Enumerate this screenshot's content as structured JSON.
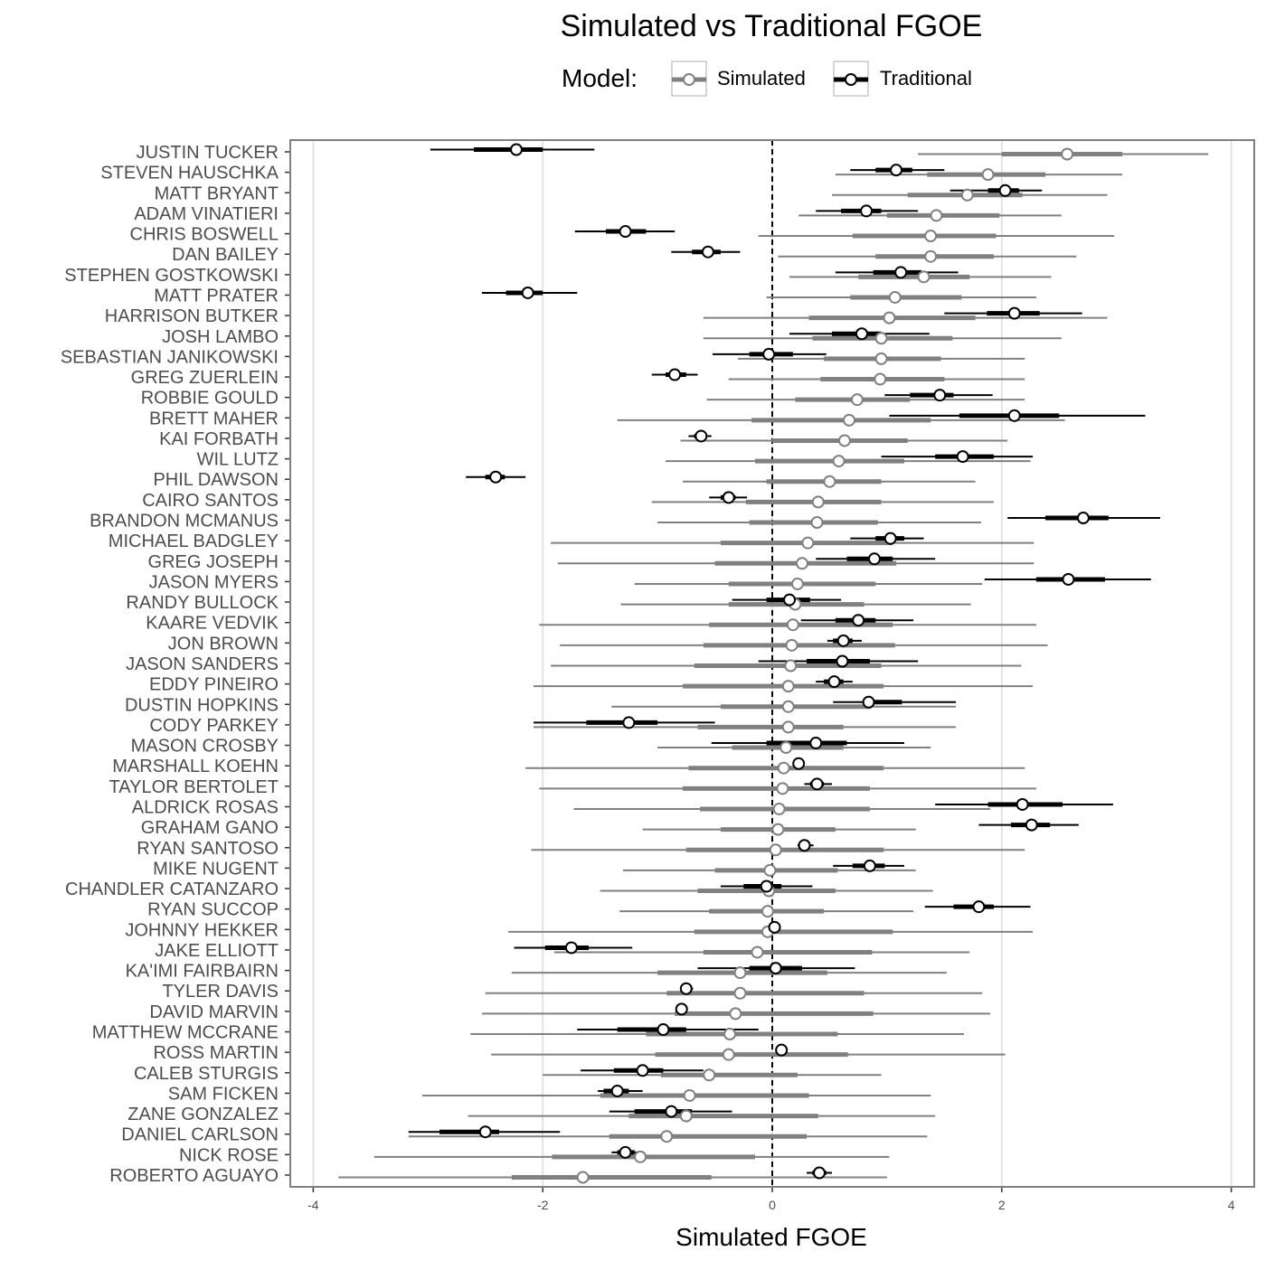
{
  "chart_data": {
    "type": "interval",
    "title": "Simulated vs Traditional FGOE",
    "xlabel": "Simulated FGOE",
    "ylabel": "",
    "xlim": [
      -4.2,
      4.2
    ],
    "xticks": [
      -4,
      -2,
      0,
      2,
      4
    ],
    "xtick_labels": [
      "-4",
      "-2",
      "0",
      "2",
      "4"
    ],
    "reference_line_x": 0,
    "grid": true,
    "legend": {
      "title": "Model:",
      "position": "top",
      "entries": [
        "Simulated",
        "Traditional"
      ]
    },
    "series": [
      {
        "name": "Simulated",
        "color": "#808080"
      },
      {
        "name": "Traditional",
        "color": "#000000"
      }
    ],
    "players": [
      {
        "name": "JUSTIN TUCKER",
        "sim": [
          1.27,
          2.0,
          2.57,
          3.05,
          3.8
        ],
        "trad": [
          -2.98,
          -2.6,
          -2.23,
          -2.0,
          -1.55
        ]
      },
      {
        "name": "STEVEN HAUSCHKA",
        "sim": [
          0.55,
          1.35,
          1.88,
          2.38,
          3.05
        ],
        "trad": [
          0.68,
          0.9,
          1.08,
          1.22,
          1.5
        ]
      },
      {
        "name": "MATT BRYANT",
        "sim": [
          0.52,
          1.18,
          1.7,
          2.18,
          2.92
        ],
        "trad": [
          1.55,
          1.88,
          2.03,
          2.15,
          2.35
        ]
      },
      {
        "name": "ADAM VINATIERI",
        "sim": [
          0.23,
          1.0,
          1.43,
          1.98,
          2.52
        ],
        "trad": [
          0.38,
          0.6,
          0.82,
          0.95,
          1.27
        ]
      },
      {
        "name": "CHRIS BOSWELL",
        "sim": [
          -0.12,
          0.7,
          1.38,
          1.95,
          2.98
        ],
        "trad": [
          -1.72,
          -1.45,
          -1.28,
          -1.1,
          -0.85
        ]
      },
      {
        "name": "DAN BAILEY",
        "sim": [
          0.05,
          0.9,
          1.38,
          1.93,
          2.65
        ],
        "trad": [
          -0.88,
          -0.7,
          -0.56,
          -0.45,
          -0.28
        ]
      },
      {
        "name": "STEPHEN GOSTKOWSKI",
        "sim": [
          0.15,
          0.75,
          1.32,
          1.72,
          2.43
        ],
        "trad": [
          0.55,
          0.88,
          1.12,
          1.3,
          1.62
        ]
      },
      {
        "name": "MATT PRATER",
        "sim": [
          -0.05,
          0.68,
          1.07,
          1.65,
          2.3
        ],
        "trad": [
          -2.53,
          -2.32,
          -2.13,
          -2.0,
          -1.7
        ]
      },
      {
        "name": "HARRISON BUTKER",
        "sim": [
          -0.6,
          0.32,
          1.02,
          1.77,
          2.92
        ],
        "trad": [
          1.5,
          1.87,
          2.11,
          2.33,
          2.7
        ]
      },
      {
        "name": "JOSH LAMBO",
        "sim": [
          -0.6,
          0.35,
          0.95,
          1.57,
          2.52
        ],
        "trad": [
          0.15,
          0.52,
          0.78,
          0.95,
          1.37
        ]
      },
      {
        "name": "SEBASTIAN JANIKOWSKI",
        "sim": [
          -0.3,
          0.45,
          0.95,
          1.47,
          2.2
        ],
        "trad": [
          -0.52,
          -0.2,
          -0.03,
          0.18,
          0.47
        ]
      },
      {
        "name": "GREG ZUERLEIN",
        "sim": [
          -0.38,
          0.42,
          0.94,
          1.5,
          2.2
        ],
        "trad": [
          -1.05,
          -0.93,
          -0.85,
          -0.75,
          -0.65
        ]
      },
      {
        "name": "ROBBIE GOULD",
        "sim": [
          -0.57,
          0.2,
          0.74,
          1.2,
          2.2
        ],
        "trad": [
          0.98,
          1.2,
          1.46,
          1.58,
          1.92
        ]
      },
      {
        "name": "BRETT MAHER",
        "sim": [
          -1.35,
          -0.18,
          0.67,
          1.38,
          2.55
        ],
        "trad": [
          1.02,
          1.63,
          2.11,
          2.5,
          3.25
        ]
      },
      {
        "name": "KAI FORBATH",
        "sim": [
          -0.8,
          0.0,
          0.63,
          1.18,
          2.05
        ],
        "trad": [
          -0.73,
          -0.68,
          -0.62,
          -0.58,
          -0.53
        ]
      },
      {
        "name": "WIL LUTZ",
        "sim": [
          -0.93,
          -0.15,
          0.58,
          1.15,
          2.25
        ],
        "trad": [
          0.95,
          1.42,
          1.66,
          1.93,
          2.27
        ]
      },
      {
        "name": "PHIL DAWSON",
        "sim": [
          -0.78,
          -0.05,
          0.5,
          0.95,
          1.77
        ],
        "trad": [
          -2.67,
          -2.5,
          -2.41,
          -2.33,
          -2.15
        ]
      },
      {
        "name": "CAIRO SANTOS",
        "sim": [
          -1.05,
          -0.23,
          0.4,
          0.95,
          1.93
        ],
        "trad": [
          -0.55,
          -0.45,
          -0.38,
          -0.32,
          -0.22
        ]
      },
      {
        "name": "BRANDON MCMANUS",
        "sim": [
          -1.0,
          -0.2,
          0.39,
          0.92,
          1.82
        ],
        "trad": [
          2.05,
          2.38,
          2.71,
          2.93,
          3.38
        ]
      },
      {
        "name": "MICHAEL BADGLEY",
        "sim": [
          -1.93,
          -0.45,
          0.31,
          1.05,
          2.28
        ],
        "trad": [
          0.68,
          0.9,
          1.03,
          1.15,
          1.32
        ]
      },
      {
        "name": "GREG JOSEPH",
        "sim": [
          -1.87,
          -0.5,
          0.26,
          1.08,
          2.28
        ],
        "trad": [
          0.38,
          0.65,
          0.89,
          1.05,
          1.42
        ]
      },
      {
        "name": "JASON MYERS",
        "sim": [
          -1.2,
          -0.38,
          0.22,
          0.9,
          1.83
        ],
        "trad": [
          1.85,
          2.3,
          2.58,
          2.9,
          3.3
        ]
      },
      {
        "name": "RANDY BULLOCK",
        "sim": [
          -1.32,
          -0.38,
          0.2,
          0.8,
          1.73
        ],
        "trad": [
          -0.35,
          -0.05,
          0.15,
          0.33,
          0.6
        ]
      },
      {
        "name": "KAARE VEDVIK",
        "sim": [
          -2.03,
          -0.55,
          0.18,
          1.05,
          2.3
        ],
        "trad": [
          0.25,
          0.55,
          0.75,
          0.9,
          1.23
        ]
      },
      {
        "name": "JON BROWN",
        "sim": [
          -1.85,
          -0.6,
          0.17,
          1.07,
          2.4
        ],
        "trad": [
          0.48,
          0.53,
          0.62,
          0.7,
          0.78
        ]
      },
      {
        "name": "JASON SANDERS",
        "sim": [
          -1.93,
          -0.68,
          0.16,
          0.95,
          2.17
        ],
        "trad": [
          -0.12,
          0.3,
          0.61,
          0.85,
          1.27
        ]
      },
      {
        "name": "EDDY PINEIRO",
        "sim": [
          -2.08,
          -0.78,
          0.14,
          0.97,
          2.27
        ],
        "trad": [
          0.38,
          0.45,
          0.54,
          0.62,
          0.7
        ]
      },
      {
        "name": "DUSTIN HOPKINS",
        "sim": [
          -1.4,
          -0.45,
          0.14,
          0.86,
          1.6
        ],
        "trad": [
          0.53,
          0.87,
          0.84,
          1.13,
          1.6
        ]
      },
      {
        "name": "CODY PARKEY",
        "sim": [
          -2.08,
          -0.65,
          0.14,
          0.62,
          1.6
        ],
        "trad": [
          -2.08,
          -1.62,
          -1.25,
          -1.0,
          -0.5
        ]
      },
      {
        "name": "MASON CROSBY",
        "sim": [
          -1.0,
          -0.35,
          0.12,
          0.62,
          1.38
        ],
        "trad": [
          -0.53,
          -0.05,
          0.38,
          0.65,
          1.15
        ]
      },
      {
        "name": "MARSHALL KOEHN",
        "sim": [
          -2.15,
          -0.73,
          0.1,
          0.97,
          2.2
        ],
        "trad": [
          0.18,
          0.2,
          0.23,
          0.26,
          0.28
        ]
      },
      {
        "name": "TAYLOR BERTOLET",
        "sim": [
          -2.03,
          -0.78,
          0.09,
          0.85,
          2.3
        ],
        "trad": [
          0.28,
          0.33,
          0.39,
          0.45,
          0.52
        ]
      },
      {
        "name": "ALDRICK ROSAS",
        "sim": [
          -1.73,
          -0.63,
          0.06,
          0.85,
          1.9
        ],
        "trad": [
          1.42,
          1.88,
          2.18,
          2.53,
          2.97
        ]
      },
      {
        "name": "GRAHAM GANO",
        "sim": [
          -1.13,
          -0.45,
          0.05,
          0.55,
          1.25
        ],
        "trad": [
          1.8,
          2.08,
          2.26,
          2.42,
          2.67
        ]
      },
      {
        "name": "RYAN SANTOSO",
        "sim": [
          -2.1,
          -0.75,
          0.03,
          0.97,
          2.2
        ],
        "trad": [
          0.22,
          0.25,
          0.28,
          0.32,
          0.36
        ]
      },
      {
        "name": "MIKE NUGENT",
        "sim": [
          -1.3,
          -0.5,
          -0.02,
          0.57,
          1.25
        ],
        "trad": [
          0.53,
          0.7,
          0.85,
          0.98,
          1.15
        ]
      },
      {
        "name": "CHANDLER CATANZARO",
        "sim": [
          -1.5,
          -0.65,
          -0.03,
          0.55,
          1.4
        ],
        "trad": [
          -0.45,
          -0.25,
          -0.05,
          0.08,
          0.35
        ]
      },
      {
        "name": "RYAN SUCCOP",
        "sim": [
          -1.33,
          -0.55,
          -0.04,
          0.45,
          1.23
        ],
        "trad": [
          1.33,
          1.58,
          1.8,
          1.93,
          2.25
        ]
      },
      {
        "name": "JOHNNY HEKKER",
        "sim": [
          -2.3,
          -0.68,
          -0.04,
          1.05,
          2.27
        ],
        "trad": [
          0.0,
          0.01,
          0.02,
          0.03,
          0.04
        ]
      },
      {
        "name": "JAKE ELLIOTT",
        "sim": [
          -1.9,
          -0.6,
          -0.13,
          0.87,
          1.72
        ],
        "trad": [
          -2.25,
          -1.98,
          -1.75,
          -1.6,
          -1.22
        ]
      },
      {
        "name": "KA'IMI FAIRBAIRN",
        "sim": [
          -2.27,
          -1.0,
          -0.28,
          0.48,
          1.52
        ],
        "trad": [
          -0.65,
          -0.2,
          0.03,
          0.26,
          0.72
        ]
      },
      {
        "name": "TYLER DAVIS",
        "sim": [
          -2.5,
          -0.92,
          -0.28,
          0.8,
          1.83
        ],
        "trad": [
          -0.8,
          -0.78,
          -0.75,
          -0.72,
          -0.69
        ]
      },
      {
        "name": "DAVID MARVIN",
        "sim": [
          -2.53,
          -0.85,
          -0.32,
          0.88,
          1.9
        ],
        "trad": [
          -0.83,
          -0.81,
          -0.79,
          -0.77,
          -0.75
        ]
      },
      {
        "name": "MATTHEW MCCRANE",
        "sim": [
          -2.63,
          -1.1,
          -0.37,
          0.57,
          1.67
        ],
        "trad": [
          -1.7,
          -1.35,
          -0.95,
          -0.75,
          -0.12
        ]
      },
      {
        "name": "ROSS MARTIN",
        "sim": [
          -2.45,
          -1.02,
          -0.38,
          0.66,
          2.03
        ],
        "trad": [
          0.06,
          0.07,
          0.08,
          0.09,
          0.1
        ]
      },
      {
        "name": "CALEB STURGIS",
        "sim": [
          -2.0,
          -0.97,
          -0.55,
          0.22,
          0.95
        ],
        "trad": [
          -1.67,
          -1.38,
          -1.13,
          -0.95,
          -0.6
        ]
      },
      {
        "name": "SAM FICKEN",
        "sim": [
          -3.05,
          -1.5,
          -0.72,
          0.32,
          1.38
        ],
        "trad": [
          -1.52,
          -1.47,
          -1.35,
          -1.25,
          -1.13
        ]
      },
      {
        "name": "ZANE GONZALEZ",
        "sim": [
          -2.65,
          -1.25,
          -0.75,
          0.4,
          1.42
        ],
        "trad": [
          -1.42,
          -1.2,
          -0.88,
          -0.7,
          -0.35
        ]
      },
      {
        "name": "DANIEL CARLSON",
        "sim": [
          -3.17,
          -1.42,
          -0.92,
          0.3,
          1.35
        ],
        "trad": [
          -3.17,
          -2.9,
          -2.5,
          -2.38,
          -1.85
        ]
      },
      {
        "name": "NICK ROSE",
        "sim": [
          -3.47,
          -1.92,
          -1.15,
          -0.15,
          1.02
        ],
        "trad": [
          -1.4,
          -1.35,
          -1.28,
          -1.2,
          -1.12
        ]
      },
      {
        "name": "ROBERTO AGUAYO",
        "sim": [
          -3.78,
          -2.27,
          -1.65,
          -0.53,
          1.0
        ],
        "trad": [
          0.3,
          0.35,
          0.41,
          0.47,
          0.52
        ]
      }
    ]
  }
}
